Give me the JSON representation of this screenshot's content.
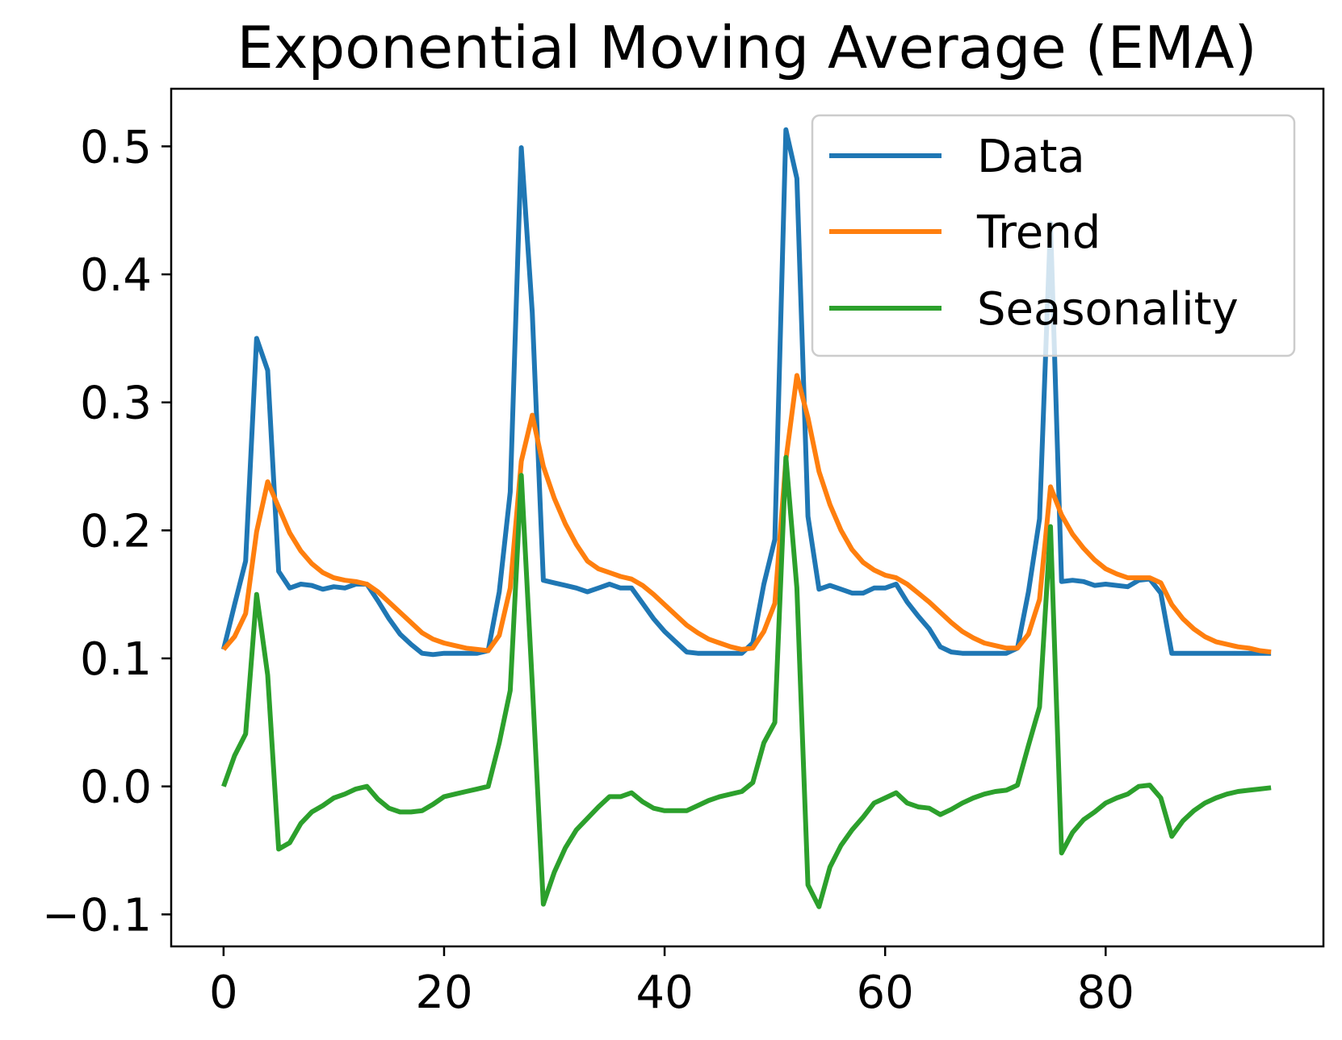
{
  "chart_data": {
    "type": "line",
    "title": "Exponential Moving Average (EMA)",
    "xlabel": "",
    "ylabel": "",
    "xlim": [
      -4.75,
      99.75
    ],
    "ylim": [
      -0.125,
      0.545
    ],
    "xticks": [
      0,
      20,
      40,
      60,
      80
    ],
    "yticks": [
      -0.1,
      0.0,
      0.1,
      0.2,
      0.3,
      0.4,
      0.5
    ],
    "ytick_labels": [
      "−0.1",
      "0.0",
      "0.1",
      "0.2",
      "0.3",
      "0.4",
      "0.5"
    ],
    "grid": false,
    "legend_position": "top-right",
    "series": [
      {
        "name": "Data",
        "color": "#1f77b4",
        "values": [
          0.107,
          0.142,
          0.176,
          0.35,
          0.325,
          0.168,
          0.155,
          0.158,
          0.157,
          0.154,
          0.156,
          0.155,
          0.158,
          0.158,
          0.145,
          0.131,
          0.119,
          0.111,
          0.104,
          0.103,
          0.104,
          0.104,
          0.104,
          0.104,
          0.106,
          0.152,
          0.23,
          0.499,
          0.37,
          0.161,
          0.159,
          0.157,
          0.155,
          0.152,
          0.155,
          0.158,
          0.155,
          0.155,
          0.143,
          0.131,
          0.121,
          0.113,
          0.105,
          0.104,
          0.104,
          0.104,
          0.104,
          0.104,
          0.112,
          0.158,
          0.193,
          0.513,
          0.475,
          0.211,
          0.154,
          0.157,
          0.154,
          0.151,
          0.151,
          0.155,
          0.155,
          0.158,
          0.144,
          0.133,
          0.123,
          0.109,
          0.105,
          0.104,
          0.104,
          0.104,
          0.104,
          0.104,
          0.108,
          0.152,
          0.209,
          0.44,
          0.16,
          0.161,
          0.16,
          0.157,
          0.158,
          0.157,
          0.156,
          0.161,
          0.162,
          0.151,
          0.104,
          0.104,
          0.104,
          0.104,
          0.104,
          0.104,
          0.104,
          0.104,
          0.104,
          0.104
        ]
      },
      {
        "name": "Trend",
        "color": "#ff7f0e",
        "values": [
          0.107,
          0.117,
          0.135,
          0.199,
          0.238,
          0.218,
          0.198,
          0.184,
          0.174,
          0.167,
          0.163,
          0.161,
          0.16,
          0.158,
          0.152,
          0.144,
          0.136,
          0.128,
          0.12,
          0.115,
          0.112,
          0.11,
          0.108,
          0.107,
          0.106,
          0.118,
          0.155,
          0.254,
          0.29,
          0.25,
          0.225,
          0.205,
          0.189,
          0.176,
          0.17,
          0.167,
          0.164,
          0.162,
          0.157,
          0.15,
          0.142,
          0.134,
          0.126,
          0.12,
          0.115,
          0.112,
          0.109,
          0.107,
          0.108,
          0.121,
          0.143,
          0.255,
          0.321,
          0.288,
          0.246,
          0.22,
          0.2,
          0.185,
          0.175,
          0.169,
          0.165,
          0.163,
          0.158,
          0.151,
          0.144,
          0.136,
          0.128,
          0.121,
          0.116,
          0.112,
          0.11,
          0.108,
          0.108,
          0.119,
          0.146,
          0.234,
          0.212,
          0.197,
          0.186,
          0.177,
          0.17,
          0.166,
          0.163,
          0.163,
          0.163,
          0.159,
          0.142,
          0.131,
          0.123,
          0.117,
          0.113,
          0.111,
          0.109,
          0.108,
          0.106,
          0.105
        ]
      },
      {
        "name": "Seasonality",
        "color": "#2ca02c",
        "values": [
          0.0,
          0.024,
          0.041,
          0.15,
          0.087,
          -0.049,
          -0.044,
          -0.029,
          -0.02,
          -0.015,
          -0.009,
          -0.006,
          -0.002,
          0.0,
          -0.01,
          -0.017,
          -0.02,
          -0.02,
          -0.019,
          -0.014,
          -0.008,
          -0.006,
          -0.004,
          -0.002,
          0.0,
          0.034,
          0.075,
          0.243,
          0.08,
          -0.092,
          -0.067,
          -0.048,
          -0.034,
          -0.025,
          -0.016,
          -0.008,
          -0.008,
          -0.005,
          -0.012,
          -0.017,
          -0.019,
          -0.019,
          -0.019,
          -0.015,
          -0.011,
          -0.008,
          -0.006,
          -0.004,
          0.003,
          0.034,
          0.05,
          0.257,
          0.155,
          -0.077,
          -0.094,
          -0.063,
          -0.046,
          -0.034,
          -0.024,
          -0.013,
          -0.009,
          -0.005,
          -0.013,
          -0.016,
          -0.017,
          -0.022,
          -0.018,
          -0.013,
          -0.009,
          -0.006,
          -0.004,
          -0.003,
          0.001,
          0.032,
          0.062,
          0.203,
          -0.052,
          -0.036,
          -0.026,
          -0.02,
          -0.013,
          -0.009,
          -0.006,
          0.0,
          0.001,
          -0.009,
          -0.039,
          -0.027,
          -0.019,
          -0.013,
          -0.009,
          -0.006,
          -0.004,
          -0.003,
          -0.002,
          -0.001
        ]
      }
    ]
  }
}
